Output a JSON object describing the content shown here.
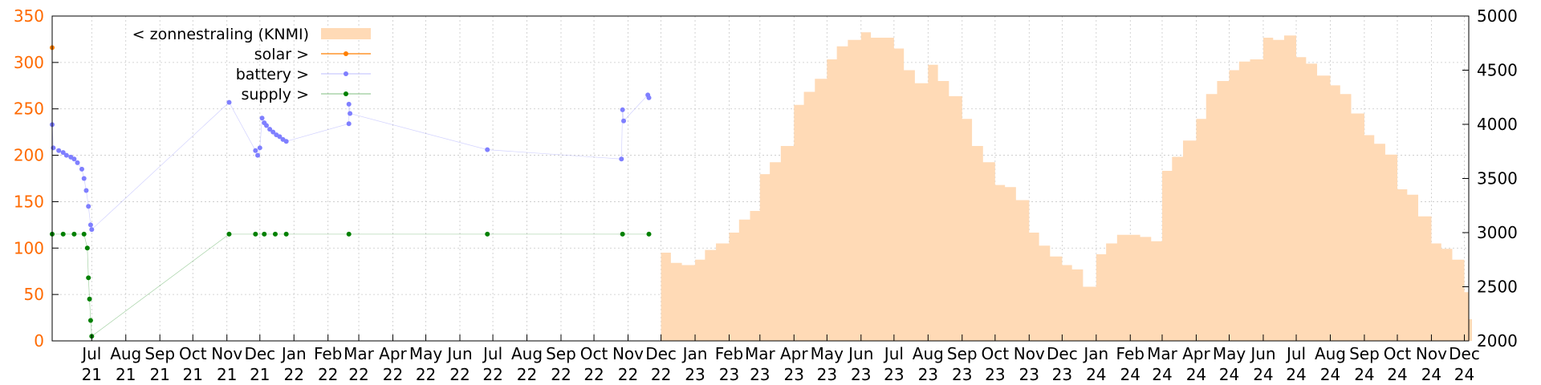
{
  "chart_data": {
    "type": "area",
    "title": "",
    "xlabel": "",
    "ylabel": "",
    "grid": true,
    "legend_position": "top-left",
    "x_range": [
      "2021-05-26",
      "2024-12-05"
    ],
    "ylim_left": [
      0,
      350
    ],
    "ylim_right": [
      2000,
      5000
    ],
    "left_axis_color": "#ff6a00",
    "y_ticks_left": [
      0,
      50,
      100,
      150,
      200,
      250,
      300,
      350
    ],
    "y_ticks_right": [
      2000,
      2500,
      3000,
      3500,
      4000,
      4500,
      5000
    ],
    "x_ticks": [
      {
        "date": "2021-07-01",
        "label": [
          "Jul",
          "21"
        ]
      },
      {
        "date": "2021-08-01",
        "label": [
          "Aug",
          "21"
        ]
      },
      {
        "date": "2021-09-01",
        "label": [
          "Sep",
          "21"
        ]
      },
      {
        "date": "2021-10-01",
        "label": [
          "Oct",
          "21"
        ]
      },
      {
        "date": "2021-11-01",
        "label": [
          "Nov",
          "21"
        ]
      },
      {
        "date": "2021-12-01",
        "label": [
          "Dec",
          "21"
        ]
      },
      {
        "date": "2022-01-01",
        "label": [
          "Jan",
          "22"
        ]
      },
      {
        "date": "2022-02-01",
        "label": [
          "Feb",
          "22"
        ]
      },
      {
        "date": "2022-03-01",
        "label": [
          "Mar",
          "22"
        ]
      },
      {
        "date": "2022-04-01",
        "label": [
          "Apr",
          "22"
        ]
      },
      {
        "date": "2022-05-01",
        "label": [
          "May",
          "22"
        ]
      },
      {
        "date": "2022-06-01",
        "label": [
          "Jun",
          "22"
        ]
      },
      {
        "date": "2022-07-01",
        "label": [
          "Jul",
          "22"
        ]
      },
      {
        "date": "2022-08-01",
        "label": [
          "Aug",
          "22"
        ]
      },
      {
        "date": "2022-09-01",
        "label": [
          "Sep",
          "22"
        ]
      },
      {
        "date": "2022-10-01",
        "label": [
          "Oct",
          "22"
        ]
      },
      {
        "date": "2022-11-01",
        "label": [
          "Nov",
          "22"
        ]
      },
      {
        "date": "2022-12-01",
        "label": [
          "Dec",
          "22"
        ]
      },
      {
        "date": "2023-01-01",
        "label": [
          "Jan",
          "23"
        ]
      },
      {
        "date": "2023-02-01",
        "label": [
          "Feb",
          "23"
        ]
      },
      {
        "date": "2023-03-01",
        "label": [
          "Mar",
          "23"
        ]
      },
      {
        "date": "2023-04-01",
        "label": [
          "Apr",
          "23"
        ]
      },
      {
        "date": "2023-05-01",
        "label": [
          "May",
          "23"
        ]
      },
      {
        "date": "2023-06-01",
        "label": [
          "Jun",
          "23"
        ]
      },
      {
        "date": "2023-07-01",
        "label": [
          "Jul",
          "23"
        ]
      },
      {
        "date": "2023-08-01",
        "label": [
          "Aug",
          "23"
        ]
      },
      {
        "date": "2023-09-01",
        "label": [
          "Sep",
          "23"
        ]
      },
      {
        "date": "2023-10-01",
        "label": [
          "Oct",
          "23"
        ]
      },
      {
        "date": "2023-11-01",
        "label": [
          "Nov",
          "23"
        ]
      },
      {
        "date": "2023-12-01",
        "label": [
          "Dec",
          "23"
        ]
      },
      {
        "date": "2024-01-01",
        "label": [
          "Jan",
          "24"
        ]
      },
      {
        "date": "2024-02-01",
        "label": [
          "Feb",
          "24"
        ]
      },
      {
        "date": "2024-03-01",
        "label": [
          "Mar",
          "24"
        ]
      },
      {
        "date": "2024-04-01",
        "label": [
          "Apr",
          "24"
        ]
      },
      {
        "date": "2024-05-01",
        "label": [
          "May",
          "24"
        ]
      },
      {
        "date": "2024-06-01",
        "label": [
          "Jun",
          "24"
        ]
      },
      {
        "date": "2024-07-01",
        "label": [
          "Jul",
          "24"
        ]
      },
      {
        "date": "2024-08-01",
        "label": [
          "Aug",
          "24"
        ]
      },
      {
        "date": "2024-09-01",
        "label": [
          "Sep",
          "24"
        ]
      },
      {
        "date": "2024-10-01",
        "label": [
          "Oct",
          "24"
        ]
      },
      {
        "date": "2024-11-01",
        "label": [
          "Nov",
          "24"
        ]
      },
      {
        "date": "2024-12-01",
        "label": [
          "Dec",
          "24"
        ]
      }
    ],
    "series": [
      {
        "name": "< zonnestraling (KNMI)",
        "axis": "right",
        "style": "filled-steps",
        "color": "#ffdab6",
        "points": [
          [
            "2022-12-01",
            2815
          ],
          [
            "2022-12-10",
            2720
          ],
          [
            "2022-12-20",
            2700
          ],
          [
            "2023-01-01",
            2750
          ],
          [
            "2023-01-10",
            2840
          ],
          [
            "2023-01-20",
            2900
          ],
          [
            "2023-02-01",
            3000
          ],
          [
            "2023-02-10",
            3120
          ],
          [
            "2023-02-20",
            3200
          ],
          [
            "2023-03-01",
            3540
          ],
          [
            "2023-03-10",
            3650
          ],
          [
            "2023-03-20",
            3800
          ],
          [
            "2023-04-01",
            4180
          ],
          [
            "2023-04-10",
            4300
          ],
          [
            "2023-04-20",
            4420
          ],
          [
            "2023-05-01",
            4600
          ],
          [
            "2023-05-10",
            4720
          ],
          [
            "2023-05-20",
            4780
          ],
          [
            "2023-06-01",
            4850
          ],
          [
            "2023-06-10",
            4800
          ],
          [
            "2023-06-20",
            4800
          ],
          [
            "2023-07-01",
            4700
          ],
          [
            "2023-07-10",
            4500
          ],
          [
            "2023-07-20",
            4380
          ],
          [
            "2023-08-01",
            4550
          ],
          [
            "2023-08-10",
            4400
          ],
          [
            "2023-08-20",
            4260
          ],
          [
            "2023-09-01",
            4050
          ],
          [
            "2023-09-10",
            3800
          ],
          [
            "2023-09-20",
            3650
          ],
          [
            "2023-10-01",
            3440
          ],
          [
            "2023-10-10",
            3420
          ],
          [
            "2023-10-20",
            3300
          ],
          [
            "2023-11-01",
            3000
          ],
          [
            "2023-11-10",
            2880
          ],
          [
            "2023-11-20",
            2780
          ],
          [
            "2023-12-01",
            2700
          ],
          [
            "2023-12-10",
            2660
          ],
          [
            "2023-12-20",
            2500
          ],
          [
            "2024-01-01",
            2800
          ],
          [
            "2024-01-10",
            2900
          ],
          [
            "2024-01-20",
            2980
          ],
          [
            "2024-02-01",
            2980
          ],
          [
            "2024-02-10",
            2960
          ],
          [
            "2024-02-20",
            2920
          ],
          [
            "2024-03-01",
            3570
          ],
          [
            "2024-03-10",
            3700
          ],
          [
            "2024-03-20",
            3850
          ],
          [
            "2024-04-01",
            4050
          ],
          [
            "2024-04-10",
            4280
          ],
          [
            "2024-04-20",
            4400
          ],
          [
            "2024-05-01",
            4500
          ],
          [
            "2024-05-10",
            4580
          ],
          [
            "2024-05-20",
            4600
          ],
          [
            "2024-06-01",
            4800
          ],
          [
            "2024-06-10",
            4780
          ],
          [
            "2024-06-20",
            4820
          ],
          [
            "2024-07-01",
            4620
          ],
          [
            "2024-07-10",
            4560
          ],
          [
            "2024-07-20",
            4450
          ],
          [
            "2024-08-01",
            4360
          ],
          [
            "2024-08-10",
            4280
          ],
          [
            "2024-08-20",
            4100
          ],
          [
            "2024-09-01",
            3900
          ],
          [
            "2024-09-10",
            3820
          ],
          [
            "2024-09-20",
            3720
          ],
          [
            "2024-10-01",
            3400
          ],
          [
            "2024-10-10",
            3350
          ],
          [
            "2024-10-20",
            3150
          ],
          [
            "2024-11-01",
            2900
          ],
          [
            "2024-11-10",
            2850
          ],
          [
            "2024-11-20",
            2750
          ],
          [
            "2024-12-01",
            2450
          ],
          [
            "2024-12-05",
            2200
          ]
        ]
      },
      {
        "name": "solar >",
        "axis": "left",
        "style": "points",
        "color": "#ff7f00",
        "points": [
          [
            "2021-05-26",
            316
          ]
        ]
      },
      {
        "name": "battery >",
        "axis": "left",
        "style": "linespoints",
        "color": "#7f7fff",
        "points": [
          [
            "2021-05-26",
            233
          ],
          [
            "2021-05-27",
            208
          ],
          [
            "2021-06-01",
            205
          ],
          [
            "2021-06-05",
            203
          ],
          [
            "2021-06-08",
            200
          ],
          [
            "2021-06-12",
            198
          ],
          [
            "2021-06-15",
            196
          ],
          [
            "2021-06-18",
            192
          ],
          [
            "2021-06-22",
            185
          ],
          [
            "2021-06-24",
            175
          ],
          [
            "2021-06-26",
            162
          ],
          [
            "2021-06-28",
            145
          ],
          [
            "2021-06-30",
            125
          ],
          [
            "2021-07-01",
            120
          ],
          [
            "2021-11-03",
            257
          ],
          [
            "2021-11-27",
            205
          ],
          [
            "2021-11-29",
            200
          ],
          [
            "2021-12-01",
            208
          ],
          [
            "2021-12-03",
            240
          ],
          [
            "2021-12-05",
            235
          ],
          [
            "2021-12-07",
            232
          ],
          [
            "2021-12-10",
            228
          ],
          [
            "2021-12-13",
            225
          ],
          [
            "2021-12-16",
            222
          ],
          [
            "2021-12-19",
            220
          ],
          [
            "2021-12-22",
            217
          ],
          [
            "2021-12-25",
            215
          ],
          [
            "2022-02-20",
            234
          ],
          [
            "2022-02-20",
            255
          ],
          [
            "2022-02-21",
            245
          ],
          [
            "2022-06-26",
            206
          ],
          [
            "2022-10-26",
            196
          ],
          [
            "2022-10-27",
            249
          ],
          [
            "2022-10-28",
            237
          ],
          [
            "2022-11-19",
            265
          ],
          [
            "2022-11-20",
            262
          ]
        ]
      },
      {
        "name": "supply >",
        "axis": "left",
        "style": "linespoints",
        "color": "#008000",
        "points": [
          [
            "2021-05-26",
            115
          ],
          [
            "2021-06-05",
            115
          ],
          [
            "2021-06-15",
            115
          ],
          [
            "2021-06-24",
            115
          ],
          [
            "2021-06-27",
            100
          ],
          [
            "2021-06-28",
            68
          ],
          [
            "2021-06-29",
            45
          ],
          [
            "2021-06-30",
            22
          ],
          [
            "2021-07-01",
            5
          ],
          [
            "2021-11-03",
            115
          ],
          [
            "2021-11-27",
            115
          ],
          [
            "2021-12-05",
            115
          ],
          [
            "2021-12-15",
            115
          ],
          [
            "2021-12-25",
            115
          ],
          [
            "2022-02-20",
            115
          ],
          [
            "2022-06-26",
            115
          ],
          [
            "2022-10-27",
            115
          ],
          [
            "2022-11-20",
            115
          ]
        ]
      }
    ]
  }
}
